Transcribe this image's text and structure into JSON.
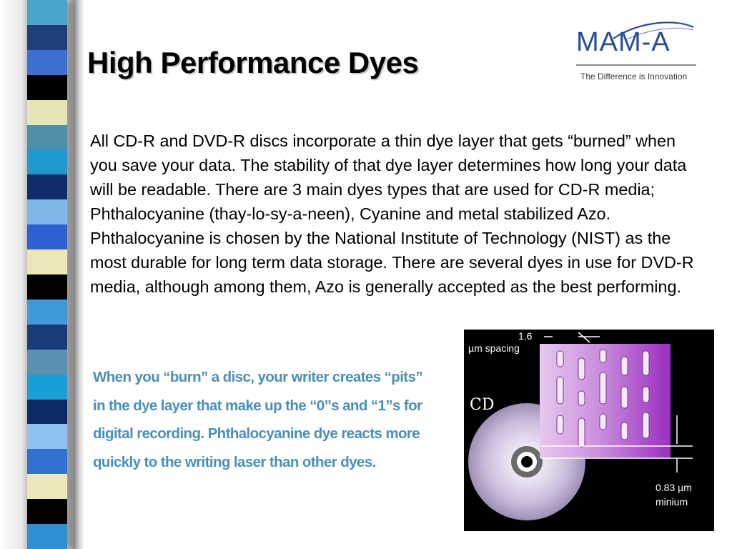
{
  "slide": {
    "title": "High Performance Dyes",
    "body": "All CD-R and DVD-R discs incorporate a thin dye layer that gets “burned” when you save your data.  The stability of that dye layer determines how long your data will be readable.  There are 3 main dyes types that are used for CD-R media;  Phthalocyanine (thay-lo-sy-a-neen), Cyanine and metal stabilized Azo.  Phthalocyanine is chosen by the National Institute of Technology (NIST) as the most durable for long term data storage. There are several dyes in use for DVD-R media, although among them, Azo is generally accepted as the best performing.",
    "caption": "When you “burn” a disc, your writer creates “pits” in the dye layer that make up the “0”s and “1”s for digital recording. Phthalocyanine dye reacts more quickly to the writing laser than other dyes."
  },
  "logo": {
    "text": "MAM-A",
    "tagline": "The Difference is Innovation",
    "color": "#2a4b9b"
  },
  "figure": {
    "disc_label": "CD",
    "spacing_value": "1.6",
    "spacing_unit": "µm spacing",
    "min_value": "0.83 µm",
    "min_label": "minium",
    "pit_color": "#9b2fc2"
  },
  "stripes": {
    "colors": [
      "#4aa3c9",
      "#1f3f7a",
      "#3f6fd0",
      "#000000",
      "#e6e3b4",
      "#4f90a8",
      "#1e9ad0",
      "#0f2d6b",
      "#7fb8e8",
      "#2f5fd0",
      "#ebe7b8",
      "#000000",
      "#3f9bd8",
      "#1a3a78",
      "#5b8fb0",
      "#18a0d6",
      "#0c2a66",
      "#8fc2f0",
      "#3070d0",
      "#ece8bb",
      "#000000",
      "#2f8fd0"
    ]
  }
}
